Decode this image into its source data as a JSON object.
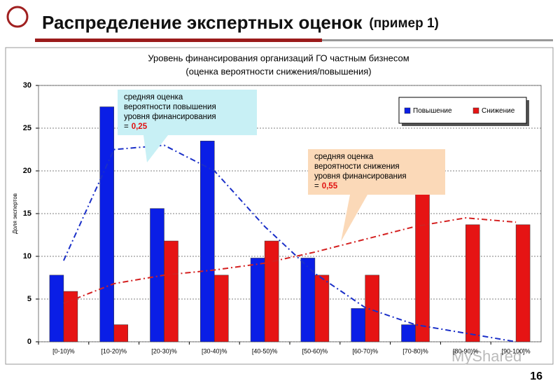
{
  "header": {
    "title": "Распределение экспертных оценок",
    "subtitle": "(пример 1)",
    "page_number": "16",
    "watermark": "MyShared"
  },
  "chart_data": {
    "type": "bar",
    "title": [
      "Уровень финансирования организаций ГО частным бизнесом",
      "(оценка вероятности снижения/повышения)"
    ],
    "ylabel": "Доля экспертов",
    "categories": [
      "[0-10)%",
      "[10-20)%",
      "[20-30)%",
      "[30-40)%",
      "[40-50)%",
      "[50-60)%",
      "[60-70)%",
      "[70-80)%",
      "[80-90)%",
      "[90-100]%"
    ],
    "series": [
      {
        "name": "Повышение",
        "color": "#0a1ee6",
        "values": [
          7.8,
          27.5,
          15.6,
          23.5,
          9.8,
          9.8,
          3.9,
          2.0,
          0,
          0
        ]
      },
      {
        "name": "Снижение",
        "color": "#e61414",
        "values": [
          5.9,
          2.0,
          11.8,
          7.8,
          11.8,
          7.8,
          7.8,
          17.6,
          13.7,
          13.7
        ]
      }
    ],
    "trends": [
      {
        "color": "#1a2fc8",
        "values": [
          9.5,
          22.5,
          23,
          20,
          13.5,
          8,
          4,
          2,
          1,
          0
        ]
      },
      {
        "color": "#d42020",
        "values": [
          4.5,
          6.8,
          7.8,
          8.4,
          9.2,
          10.5,
          12,
          13.5,
          14.5,
          14
        ]
      }
    ],
    "ylim": [
      0,
      30
    ],
    "yticks": [
      0,
      5,
      10,
      15,
      20,
      25,
      30
    ],
    "grid": true,
    "annotations": [
      {
        "lines": [
          "средняя оценка",
          "вероятности повышения",
          "уровня финансирования"
        ],
        "prefix": "=",
        "value": "0,25",
        "color": "#c8f0f5"
      },
      {
        "lines": [
          "средняя оценка",
          "вероятности снижения",
          "уровня финансирования"
        ],
        "prefix": "=",
        "value": "0,55",
        "color": "#fbd9b8"
      }
    ]
  }
}
